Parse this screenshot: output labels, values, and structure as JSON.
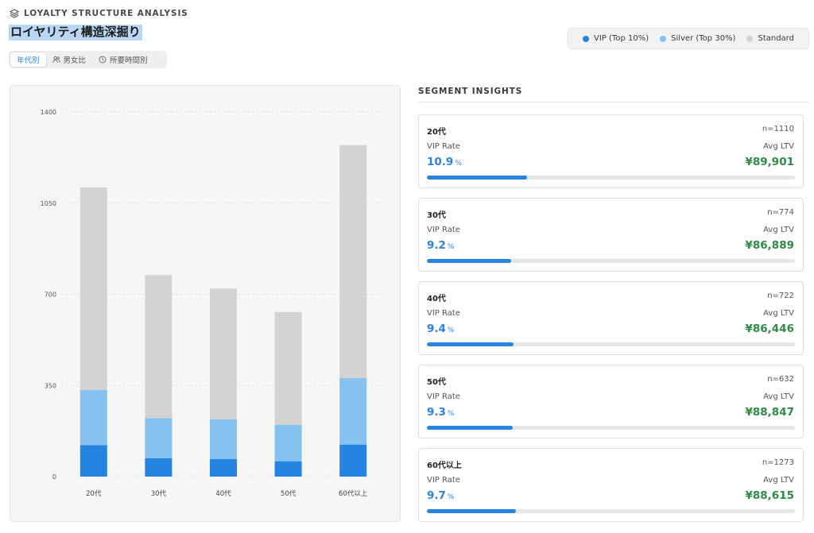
{
  "header": {
    "eyebrow": "LOYALTY STRUCTURE ANALYSIS",
    "title": "ロイヤリティ構造深掘り"
  },
  "tabs": [
    {
      "label": "年代別",
      "icon": "none",
      "active": true
    },
    {
      "label": "男女比",
      "icon": "users-icon",
      "active": false
    },
    {
      "label": "所要時間別",
      "icon": "clock-icon",
      "active": false
    }
  ],
  "legend": [
    {
      "label": "VIP (Top 10%)",
      "color": "#2584e0"
    },
    {
      "label": "Silver (Top 30%)",
      "color": "#85c2ef"
    },
    {
      "label": "Standard",
      "color": "#d4d3d1"
    }
  ],
  "chart_data": {
    "type": "bar",
    "stacked": true,
    "categories": [
      "20代",
      "30代",
      "40代",
      "50代",
      "60代以上"
    ],
    "series": [
      {
        "name": "VIP (Top 10%)",
        "color": "#2584e0",
        "values": [
          121,
          71,
          68,
          59,
          123
        ]
      },
      {
        "name": "Silver (Top 30%)",
        "color": "#85c2ef",
        "values": [
          212,
          153,
          152,
          140,
          255
        ]
      },
      {
        "name": "Standard",
        "color": "#d4d3d1",
        "values": [
          777,
          550,
          502,
          433,
          895
        ]
      }
    ],
    "ylim": [
      0,
      1400
    ],
    "yticks": [
      0,
      350,
      700,
      1050,
      1400
    ],
    "grid": true
  },
  "insights": {
    "title": "SEGMENT INSIGHTS",
    "vip_label": "VIP Rate",
    "ltv_label": "Avg LTV",
    "unit": "%",
    "cards": [
      {
        "segment": "20代",
        "n": "n=1110",
        "vip_rate": "10.9",
        "vip_fraction": 0.109,
        "ltv": "¥89,901"
      },
      {
        "segment": "30代",
        "n": "n=774",
        "vip_rate": "9.2",
        "vip_fraction": 0.092,
        "ltv": "¥86,889"
      },
      {
        "segment": "40代",
        "n": "n=722",
        "vip_rate": "9.4",
        "vip_fraction": 0.094,
        "ltv": "¥86,446"
      },
      {
        "segment": "50代",
        "n": "n=632",
        "vip_rate": "9.3",
        "vip_fraction": 0.093,
        "ltv": "¥88,847"
      },
      {
        "segment": "60代以上",
        "n": "n=1273",
        "vip_rate": "9.7",
        "vip_fraction": 0.097,
        "ltv": "¥88,615"
      }
    ]
  }
}
